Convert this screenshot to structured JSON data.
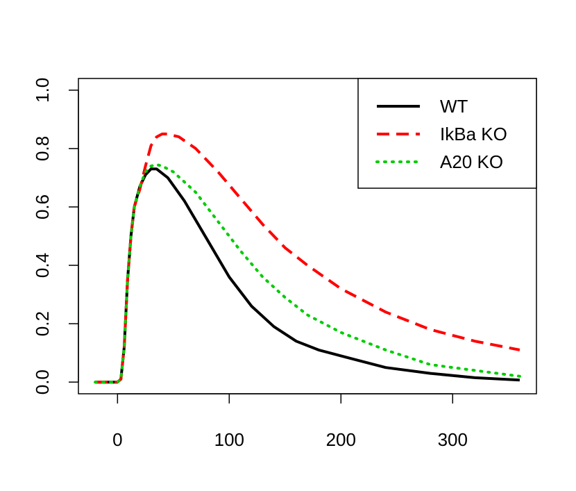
{
  "chart_data": {
    "type": "line",
    "title": "",
    "xlabel": "",
    "ylabel": "",
    "xlim": [
      -35,
      375
    ],
    "ylim": [
      -0.04,
      1.04
    ],
    "x_ticks": [
      0,
      100,
      200,
      300
    ],
    "y_ticks": [
      0.0,
      0.2,
      0.4,
      0.6,
      0.8,
      1.0
    ],
    "x_tick_labels": [
      "0",
      "100",
      "200",
      "300"
    ],
    "y_tick_labels": [
      "0.0",
      "0.2",
      "0.4",
      "0.6",
      "0.8",
      "1.0"
    ],
    "grid": false,
    "legend_position": "top-right",
    "series": [
      {
        "name": "WT",
        "color": "#000000",
        "style": "solid",
        "points": [
          [
            -20,
            0
          ],
          [
            0,
            0
          ],
          [
            3,
            0.01
          ],
          [
            6,
            0.12
          ],
          [
            9,
            0.35
          ],
          [
            12,
            0.5
          ],
          [
            15,
            0.6
          ],
          [
            20,
            0.67
          ],
          [
            25,
            0.71
          ],
          [
            30,
            0.73
          ],
          [
            35,
            0.73
          ],
          [
            45,
            0.7
          ],
          [
            60,
            0.62
          ],
          [
            80,
            0.49
          ],
          [
            100,
            0.36
          ],
          [
            120,
            0.26
          ],
          [
            140,
            0.19
          ],
          [
            160,
            0.14
          ],
          [
            180,
            0.11
          ],
          [
            200,
            0.09
          ],
          [
            240,
            0.05
          ],
          [
            280,
            0.03
          ],
          [
            320,
            0.015
          ],
          [
            360,
            0.007
          ]
        ]
      },
      {
        "name": "IkBa KO",
        "color": "#ff0000",
        "style": "dashed",
        "points": [
          [
            -20,
            0
          ],
          [
            0,
            0
          ],
          [
            3,
            0.01
          ],
          [
            6,
            0.12
          ],
          [
            9,
            0.35
          ],
          [
            12,
            0.5
          ],
          [
            15,
            0.6
          ],
          [
            20,
            0.66
          ],
          [
            25,
            0.74
          ],
          [
            30,
            0.81
          ],
          [
            35,
            0.84
          ],
          [
            40,
            0.85
          ],
          [
            45,
            0.85
          ],
          [
            55,
            0.84
          ],
          [
            70,
            0.8
          ],
          [
            90,
            0.72
          ],
          [
            110,
            0.63
          ],
          [
            130,
            0.54
          ],
          [
            150,
            0.46
          ],
          [
            170,
            0.4
          ],
          [
            200,
            0.32
          ],
          [
            240,
            0.24
          ],
          [
            280,
            0.18
          ],
          [
            320,
            0.14
          ],
          [
            360,
            0.11
          ]
        ]
      },
      {
        "name": "A20 KO",
        "color": "#00cc00",
        "style": "dotted",
        "points": [
          [
            -20,
            0
          ],
          [
            0,
            0
          ],
          [
            3,
            0.01
          ],
          [
            6,
            0.12
          ],
          [
            9,
            0.35
          ],
          [
            12,
            0.5
          ],
          [
            15,
            0.6
          ],
          [
            20,
            0.67
          ],
          [
            25,
            0.72
          ],
          [
            30,
            0.74
          ],
          [
            35,
            0.745
          ],
          [
            40,
            0.74
          ],
          [
            50,
            0.72
          ],
          [
            70,
            0.65
          ],
          [
            90,
            0.55
          ],
          [
            110,
            0.45
          ],
          [
            130,
            0.36
          ],
          [
            150,
            0.29
          ],
          [
            170,
            0.23
          ],
          [
            200,
            0.17
          ],
          [
            240,
            0.11
          ],
          [
            280,
            0.06
          ],
          [
            320,
            0.04
          ],
          [
            360,
            0.02
          ]
        ]
      }
    ]
  }
}
